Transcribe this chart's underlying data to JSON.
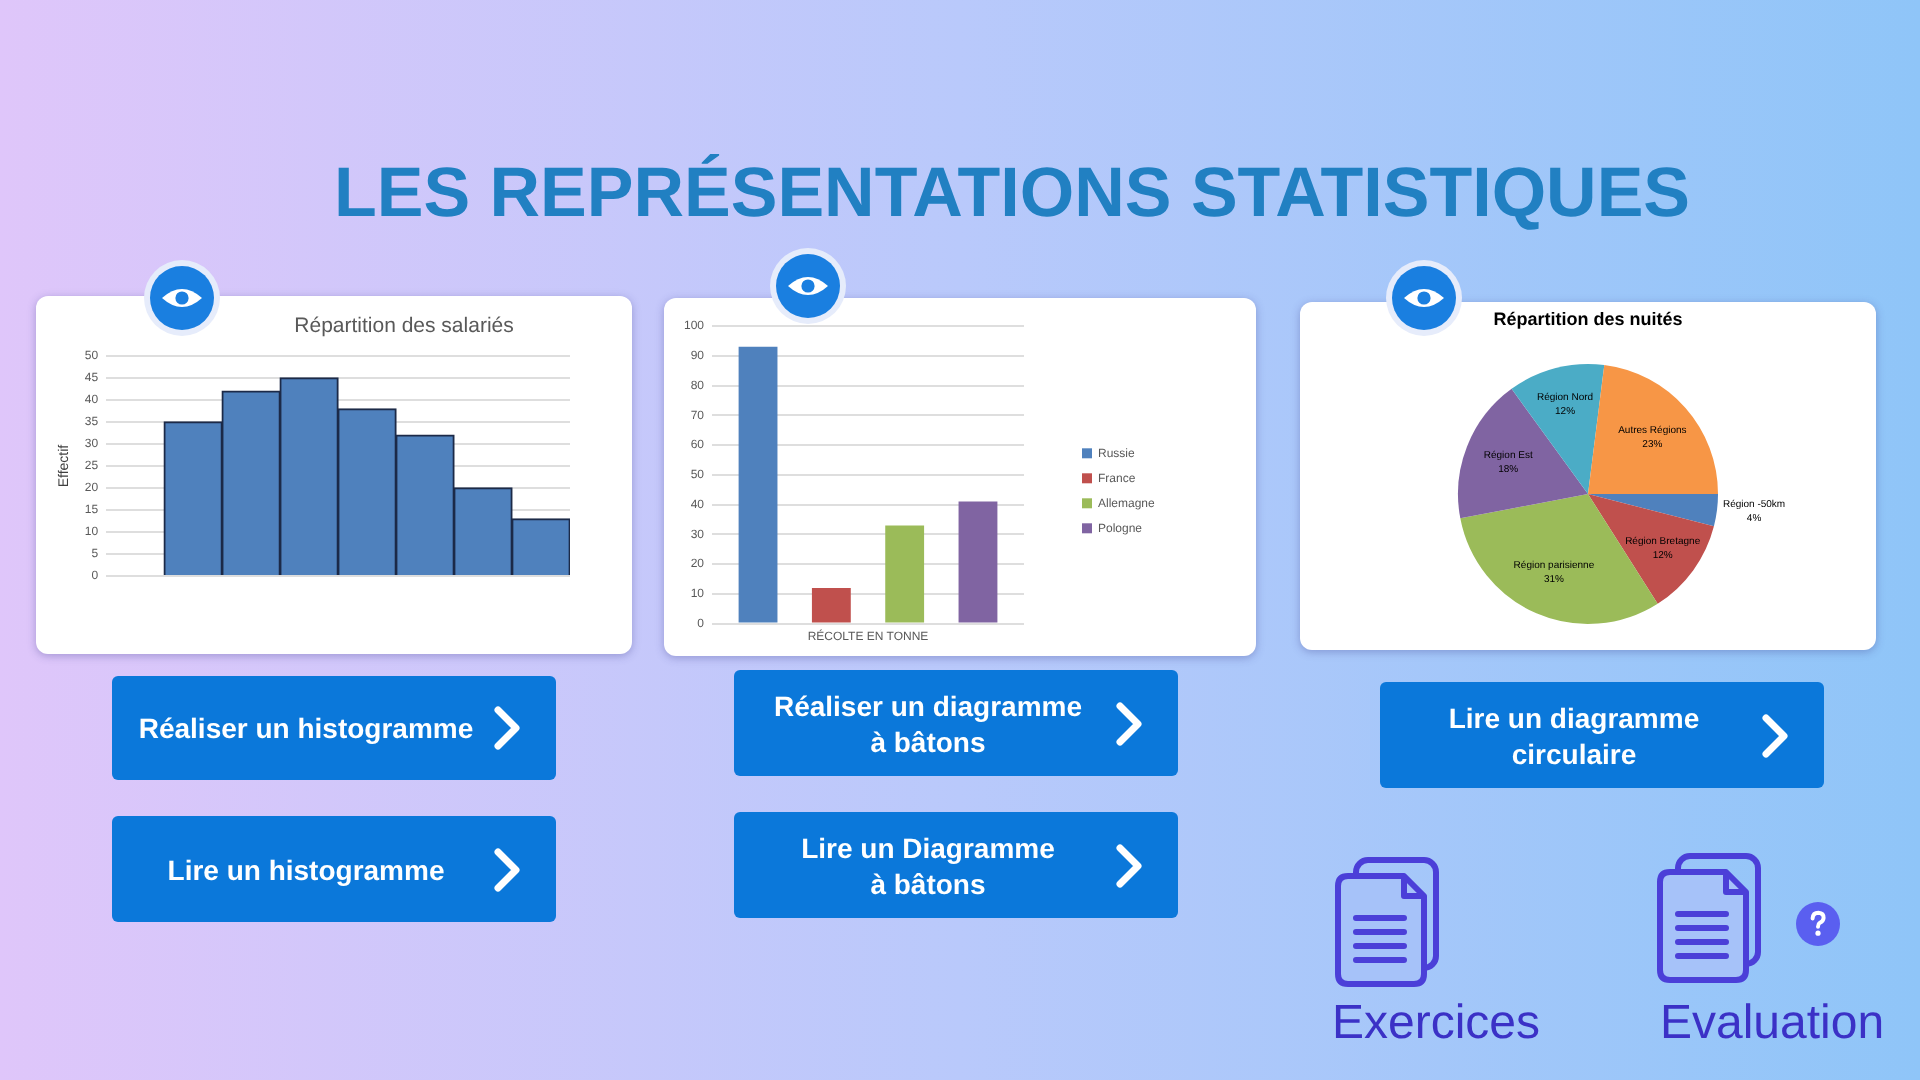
{
  "chart_data": [
    {
      "type": "other",
      "title": "LES REPRÉSENTATIONS STATISTIQUES",
      "annotations": [
        "Réaliser un histogramme",
        "Lire un histogramme",
        "Réaliser un diagramme\nà bâtons",
        "Lire un Diagramme\nà bâtons",
        "Lire un diagramme\ncirculaire",
        "Exercices",
        "Evaluation"
      ]
    },
    {
      "type": "bar",
      "title": "Répartition des salariés",
      "ylabel": "Effectif",
      "categories": [
        null,
        null,
        null,
        null,
        null,
        null,
        null,
        null
      ],
      "values": [
        null,
        35,
        42,
        45,
        38,
        32,
        20,
        13
      ],
      "color": "#4f81bd",
      "ylim": [
        0,
        50
      ],
      "yticks": [
        0,
        5,
        10,
        15,
        20,
        25,
        30,
        35,
        40,
        45,
        50
      ],
      "grid": "y",
      "tick_labels": "y"
    },
    {
      "type": "bar",
      "categories": [
        "RÉCOLTE EN TONNE"
      ],
      "series": [
        {
          "name": "Russie",
          "color": "#4f81bd",
          "values": [
            93
          ]
        },
        {
          "name": "France",
          "color": "#c0504d",
          "values": [
            12
          ]
        },
        {
          "name": "Allemagne",
          "color": "#9bbb59",
          "values": [
            33
          ]
        },
        {
          "name": "Pologne",
          "color": "#8064a2",
          "values": [
            41
          ]
        }
      ],
      "ylim": [
        0,
        100
      ],
      "yticks": [
        0,
        10,
        20,
        30,
        40,
        50,
        60,
        70,
        80,
        90,
        100
      ],
      "grid": "y",
      "legend": "right"
    },
    {
      "type": "pie",
      "title": "Répartition des nuités",
      "categories": [
        "Région -50km",
        "Région Bretagne",
        "Région parisienne",
        "Région Est",
        "Région Nord",
        "Autres Régions"
      ],
      "values": [
        4,
        12,
        31,
        18,
        12,
        23
      ],
      "colors": [
        "#4f81bd",
        "#c0504d",
        "#9bbb59",
        "#8064a2",
        "#4bacc6",
        "#f79646"
      ],
      "value_labels": [
        "4%",
        "12%",
        "31%",
        "18%",
        "12%",
        "23%"
      ]
    }
  ]
}
